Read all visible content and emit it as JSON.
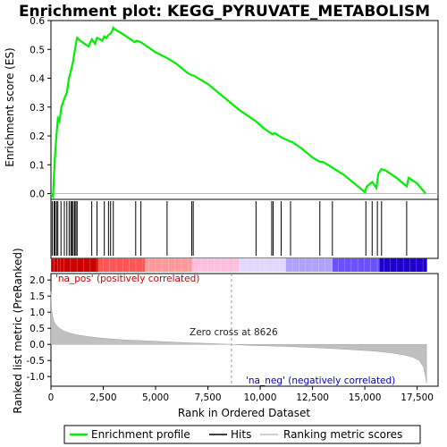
{
  "chart_data": {
    "type": "line",
    "title": "Enrichment plot: KEGG_PYRUVATE_METABOLISM",
    "xlabel": "Rank in Ordered Dataset",
    "ylabel_top": "Enrichment score (ES)",
    "ylabel_bottom": "Ranked list metric (PreRanked)",
    "xlim": [
      0,
      18500
    ],
    "x_ticks": [
      "0",
      "2,500",
      "5,000",
      "7,500",
      "10,000",
      "12,500",
      "15,000",
      "17,500"
    ],
    "x_tick_values": [
      0,
      2500,
      5000,
      7500,
      10000,
      12500,
      15000,
      17500
    ],
    "es_ylim": [
      -0.02,
      0.6
    ],
    "es_y_ticks": [
      "0.0",
      "0.1",
      "0.2",
      "0.3",
      "0.4",
      "0.5",
      "0.6"
    ],
    "es_y_tick_values": [
      0.0,
      0.1,
      0.2,
      0.3,
      0.4,
      0.5,
      0.6
    ],
    "metric_ylim": [
      -1.3,
      2.2
    ],
    "metric_y_ticks": [
      "-1.0",
      "-0.5",
      "0.0",
      "0.5",
      "1.0",
      "1.5",
      "2.0"
    ],
    "metric_y_tick_values": [
      -1.0,
      -0.5,
      0.0,
      0.5,
      1.0,
      1.5,
      2.0
    ],
    "series": [
      {
        "name": "Enrichment profile",
        "color": "#00ee00",
        "x": [
          0,
          100,
          150,
          200,
          260,
          330,
          400,
          500,
          640,
          760,
          860,
          930,
          1000,
          1060,
          1130,
          1190,
          1250,
          1400,
          1600,
          1800,
          1950,
          2100,
          2200,
          2350,
          2450,
          2550,
          2650,
          2750,
          2850,
          2930,
          2980,
          3050,
          3500,
          4000,
          4100,
          4300,
          5000,
          5550,
          6000,
          6500,
          6730,
          6800,
          7500,
          8000,
          9000,
          9800,
          10200,
          10600,
          10700,
          11000,
          11450,
          11500,
          12000,
          12500,
          12850,
          13000,
          13450,
          14000,
          14500,
          15000,
          15100,
          15350,
          15550,
          15650,
          15800,
          16000,
          16500,
          17000,
          17100,
          17500,
          17900
        ],
        "y": [
          0.0,
          -0.01,
          0.07,
          0.14,
          0.2,
          0.26,
          0.25,
          0.3,
          0.33,
          0.35,
          0.4,
          0.42,
          0.44,
          0.46,
          0.49,
          0.52,
          0.54,
          0.53,
          0.52,
          0.51,
          0.535,
          0.52,
          0.54,
          0.535,
          0.53,
          0.545,
          0.54,
          0.55,
          0.555,
          0.565,
          0.575,
          0.57,
          0.55,
          0.525,
          0.53,
          0.525,
          0.49,
          0.47,
          0.45,
          0.42,
          0.41,
          0.41,
          0.38,
          0.35,
          0.29,
          0.25,
          0.225,
          0.205,
          0.21,
          0.195,
          0.18,
          0.18,
          0.155,
          0.125,
          0.11,
          0.11,
          0.09,
          0.065,
          0.035,
          0.005,
          0.025,
          0.04,
          0.02,
          0.07,
          0.085,
          0.08,
          0.055,
          0.025,
          0.055,
          0.035,
          0.0
        ]
      }
    ],
    "hits": [
      60,
      150,
      200,
      270,
      330,
      480,
      640,
      760,
      870,
      950,
      1000,
      1060,
      1130,
      1190,
      1250,
      1950,
      2200,
      2550,
      2750,
      2850,
      2980,
      4050,
      4300,
      5550,
      6730,
      6800,
      9800,
      10550,
      10620,
      11000,
      11450,
      12850,
      13450,
      15050,
      15350,
      15600,
      15800,
      17000
    ],
    "ranking_metric": {
      "name": "Ranking metric scores",
      "x": [
        0,
        30,
        80,
        150,
        250,
        400,
        600,
        900,
        1300,
        1800,
        2500,
        3500,
        4500,
        5500,
        6500,
        7500,
        8626,
        9500,
        10500,
        11500,
        12500,
        13500,
        14500,
        15500,
        16300,
        16900,
        17300,
        17600,
        17800,
        17900,
        17950
      ],
      "y": [
        1.65,
        1.1,
        0.85,
        0.7,
        0.6,
        0.5,
        0.42,
        0.35,
        0.29,
        0.24,
        0.19,
        0.14,
        0.11,
        0.08,
        0.05,
        0.03,
        0.0,
        -0.03,
        -0.05,
        -0.07,
        -0.1,
        -0.13,
        -0.17,
        -0.21,
        -0.27,
        -0.33,
        -0.4,
        -0.5,
        -0.7,
        -1.0,
        -1.2
      ]
    },
    "annotations": {
      "pos_label": "'na_pos' (positively correlated)",
      "neg_label": "'na_neg' (negatively correlated)",
      "zero_cross": "Zero cross at 8626",
      "zero_cross_x": 8626
    },
    "legend": {
      "placement": "bottom",
      "items": [
        {
          "label": "Enrichment profile",
          "color": "#00ee00"
        },
        {
          "label": "Hits",
          "color": "#000000"
        },
        {
          "label": "Ranking metric scores",
          "color": "#c0c0c0"
        }
      ]
    },
    "heatmap_bar_colors": [
      "#cc0000",
      "#ff5555",
      "#ff9999",
      "#ffc0e0",
      "#e0d8ff",
      "#b0a0ff",
      "#6a50ff",
      "#2000cc"
    ],
    "grid": false
  }
}
